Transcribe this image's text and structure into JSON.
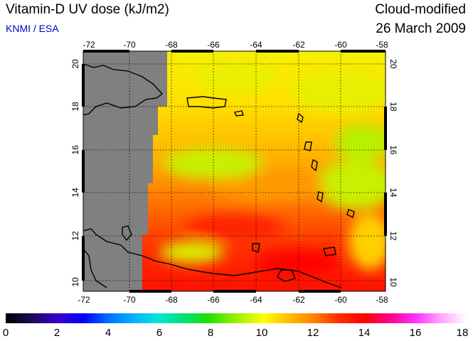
{
  "header": {
    "title": "Vitamin-D UV dose (kJ/m2)",
    "source": "KNMI / ESA",
    "mode": "Cloud-modified",
    "date": "26 March 2009"
  },
  "map": {
    "lon_ticks": [
      "-72",
      "-70",
      "-68",
      "-66",
      "-64",
      "-62",
      "-60",
      "-58"
    ],
    "lat_ticks": [
      "10",
      "12",
      "14",
      "16",
      "18",
      "20"
    ],
    "no_data_color": "#808080",
    "gridlines": "dotted"
  },
  "colorbar": {
    "labels": [
      "0",
      "2",
      "4",
      "6",
      "8",
      "10",
      "12",
      "14",
      "16",
      "18"
    ],
    "min": 0,
    "max": 18
  }
}
